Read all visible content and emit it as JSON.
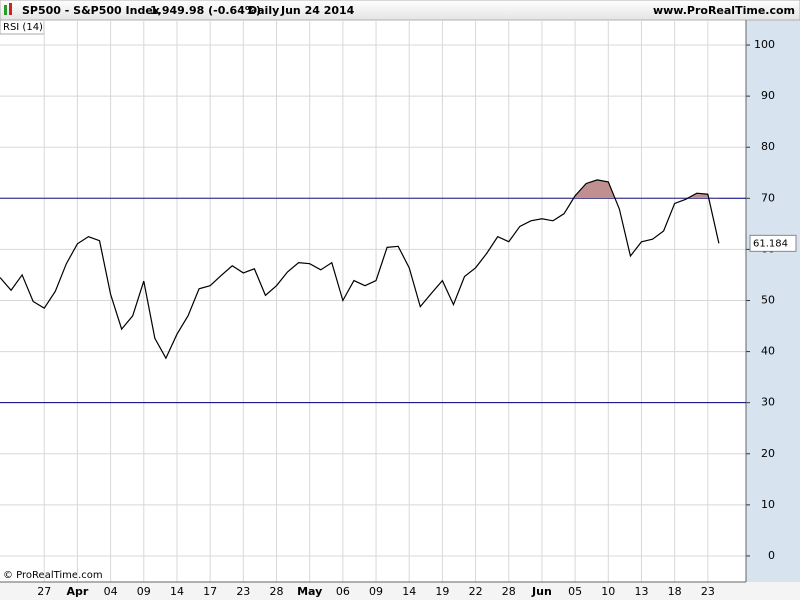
{
  "header": {
    "symbol": "SP500 - S&P500 Index",
    "quote": "1,949.98 (-0.64%)",
    "period": "Daily",
    "date": "Jun 24 2014",
    "site": "www.ProRealTime.com",
    "copyright": "© ProRealTime.com"
  },
  "chart_data": {
    "type": "line",
    "title": "RSI (14)",
    "categories": [
      null,
      null,
      null,
      null,
      "27",
      null,
      null,
      "Apr",
      null,
      null,
      "04",
      null,
      null,
      "09",
      null,
      null,
      "14",
      null,
      null,
      "17",
      null,
      null,
      "23",
      null,
      null,
      "28",
      null,
      null,
      "May",
      null,
      null,
      "06",
      null,
      null,
      "09",
      null,
      null,
      "14",
      null,
      null,
      "19",
      null,
      null,
      "22",
      null,
      null,
      "28",
      null,
      null,
      "Jun",
      null,
      null,
      "05",
      null,
      null,
      "10",
      null,
      null,
      "13",
      null,
      null,
      "18",
      null,
      null,
      "23",
      null
    ],
    "series": [
      {
        "name": "RSI (14)",
        "color": "#000000",
        "values": [
          54.5,
          52,
          55,
          49.8,
          48.5,
          51.8,
          57.2,
          61.1,
          62.5,
          61.7,
          51.2,
          44.4,
          47,
          53.8,
          42.6,
          38.7,
          43.4,
          47,
          52.3,
          52.9,
          54.9,
          56.8,
          55.4,
          56.2,
          51,
          52.9,
          55.6,
          57.4,
          57.2,
          56,
          57.4,
          50,
          53.9,
          52.9,
          53.9,
          60.4,
          60.6,
          56.4,
          48.8,
          51.4,
          53.9,
          49.2,
          54.7,
          56.4,
          59.2,
          62.5,
          61.5,
          64.5,
          65.6,
          66,
          65.6,
          67,
          70.5,
          72.9,
          73.6,
          73.2,
          67.9,
          58.7,
          61.5,
          62,
          63.6,
          69,
          69.8,
          71,
          70.8,
          61.184
        ]
      }
    ],
    "levels": [
      70,
      30
    ],
    "level_color": "#000080",
    "overbought_fill": "#c09090",
    "ylim": [
      -5.1,
      104.9
    ],
    "yticks": [
      0,
      10,
      20,
      30,
      40,
      50,
      60,
      70,
      80,
      90,
      100
    ],
    "grid": true
  }
}
